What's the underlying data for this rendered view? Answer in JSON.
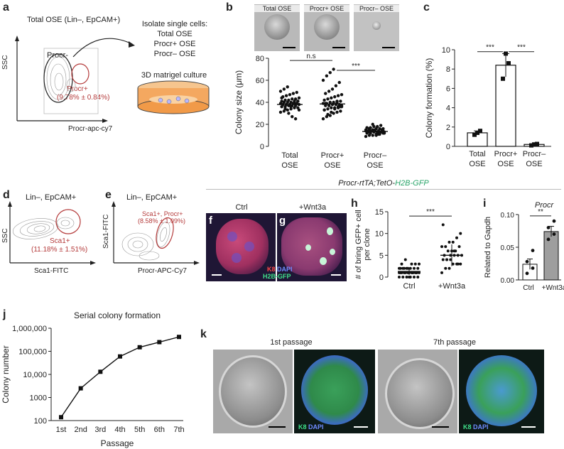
{
  "panel_a": {
    "label": "a",
    "title": "Total OSE (Lin–, EpCAM+)",
    "isolate_title": "Isolate single cells:",
    "isolate_items": [
      "Total OSE",
      "Procr+ OSE",
      "Procr– OSE"
    ],
    "culture": "3D matrigel culture",
    "gate_neg": "Procr-",
    "gate_pos": "Procr+",
    "gate_pos_value": "(9.78% ± 0.84%)",
    "y_axis": "SSC",
    "x_axis": "Procr-apc-cy7"
  },
  "panel_b": {
    "label": "b",
    "images": [
      "Total OSE",
      "Procr+ OSE",
      "Procr– OSE"
    ]
  },
  "panel_c": {
    "label": "c"
  },
  "panel_d": {
    "label": "d",
    "title": "Lin–, EpCAM+",
    "gate": "Sca1+",
    "gate_value": "(11.18% ± 1.51%)",
    "y_axis": "SSC",
    "x_axis": "Sca1-FITC"
  },
  "panel_e": {
    "label": "e",
    "title": "Lin–, EpCAM+",
    "gate": "Sca1+, Procr+",
    "gate_value": "(8.58% ± 1.09%)",
    "y_axis": "Sca1-FITC",
    "x_axis": "Procr-APC-Cy7"
  },
  "panel_fg": {
    "title_a": "Procr-rtTA;TetO-",
    "title_b": "H2B-GFP",
    "f_label": "f",
    "g_label": "g",
    "f_cond": "Ctrl",
    "g_cond": "+Wnt3a",
    "legend_k8": "K8",
    "legend_dapi": "DAPI",
    "legend_h2b": "H2B-GFP",
    "colors": {
      "k8": "#e23a3a",
      "dapi": "#4a6cff",
      "gfp": "#3fe08a"
    }
  },
  "panel_h": {
    "label": "h"
  },
  "panel_i": {
    "label": "i"
  },
  "panel_j": {
    "label": "j"
  },
  "panel_k": {
    "label": "k",
    "first": "1st passage",
    "seventh": "7th passage",
    "legend_k8": "K8",
    "legend_dapi": "DAPI"
  },
  "chart_data": [
    {
      "id": "b",
      "type": "scatter",
      "title": "",
      "ylabel": "Colony size (μm)",
      "ylim": [
        0,
        80
      ],
      "yticks": [
        0,
        20,
        40,
        60,
        80
      ],
      "categories": [
        "Total\nOSE",
        "Procr+\nOSE",
        "Procr–\nOSE"
      ],
      "category_labels": [
        [
          "Total",
          "OSE"
        ],
        [
          "Procr+",
          "OSE"
        ],
        [
          "Procr–",
          "OSE"
        ]
      ],
      "means": [
        38,
        38.5,
        13.5
      ],
      "sem": [
        1.3,
        2,
        0.7
      ],
      "points": [
        [
          31,
          32,
          33,
          34,
          35,
          35,
          36,
          36,
          37,
          37,
          37,
          38,
          38,
          38,
          38,
          39,
          39,
          39,
          40,
          40,
          40,
          41,
          41,
          41,
          42,
          42,
          43,
          43,
          44,
          45,
          46,
          47,
          48,
          49,
          50,
          52,
          54,
          36,
          39,
          41,
          44,
          34,
          30,
          27,
          25,
          33
        ],
        [
          25,
          27,
          28,
          30,
          31,
          32,
          33,
          34,
          35,
          35,
          36,
          36,
          37,
          37,
          38,
          38,
          38,
          39,
          39,
          40,
          40,
          41,
          41,
          42,
          43,
          44,
          45,
          46,
          47,
          48,
          50,
          52,
          55,
          58,
          60,
          64,
          67,
          70,
          40,
          36,
          33,
          29,
          31,
          34,
          35,
          37,
          39
        ],
        [
          9,
          10,
          10,
          11,
          11,
          12,
          12,
          12,
          13,
          13,
          13,
          13,
          14,
          14,
          14,
          14,
          15,
          15,
          15,
          15,
          16,
          16,
          16,
          17,
          17,
          18,
          18,
          19,
          12,
          13,
          14,
          15,
          11,
          13,
          14,
          16,
          20,
          10,
          12,
          14
        ]
      ],
      "annotations": [
        {
          "pair": [
            0,
            1
          ],
          "text": "n.s"
        },
        {
          "pair": [
            1,
            2
          ],
          "text": "***"
        }
      ]
    },
    {
      "id": "c",
      "type": "bar",
      "ylabel": "Colony formation (%)",
      "ylim": [
        0,
        10
      ],
      "yticks": [
        0,
        2,
        4,
        6,
        8,
        10
      ],
      "category_labels": [
        [
          "Total",
          "OSE"
        ],
        [
          "Procr+",
          "OSE"
        ],
        [
          "Procr–",
          "OSE"
        ]
      ],
      "values": [
        1.4,
        8.4,
        0.2
      ],
      "sem": [
        0.2,
        1.2,
        0.05
      ],
      "points": [
        [
          1.2,
          1.4,
          1.6
        ],
        [
          7.0,
          9.6,
          8.6
        ],
        [
          0.1,
          0.2,
          0.25
        ]
      ],
      "annotations": [
        {
          "pair": [
            0,
            1
          ],
          "text": "***"
        },
        {
          "pair": [
            1,
            2
          ],
          "text": "***"
        }
      ]
    },
    {
      "id": "h",
      "type": "scatter",
      "ylabel_lines": [
        "# of bring GFP+ cell",
        "per clone"
      ],
      "ylim": [
        0,
        15
      ],
      "yticks": [
        0,
        5,
        10,
        15
      ],
      "category_labels": [
        "Ctrl",
        "+Wnt3a"
      ],
      "means": [
        1.3,
        5
      ],
      "sem": [
        0.8,
        2.5
      ],
      "points": [
        [
          0,
          0,
          0,
          0,
          0,
          0,
          1,
          1,
          1,
          1,
          1,
          1,
          1,
          1,
          1,
          1,
          1,
          1,
          2,
          2,
          2,
          2,
          2,
          2,
          2,
          2,
          3,
          3,
          3,
          3,
          4,
          0,
          1,
          1,
          2
        ],
        [
          1,
          2,
          2,
          3,
          3,
          3,
          4,
          4,
          4,
          5,
          5,
          5,
          5,
          6,
          6,
          6,
          7,
          7,
          7,
          8,
          8,
          9,
          10,
          12,
          4,
          5,
          6,
          3
        ]
      ],
      "annotations": [
        {
          "pair": [
            0,
            1
          ],
          "text": "***"
        }
      ]
    },
    {
      "id": "i",
      "type": "bar",
      "title": "Procr",
      "ylabel": "Related to Gapdh",
      "ylim": [
        0,
        0.1
      ],
      "yticks": [
        0,
        0.05,
        0.1
      ],
      "ytick_labels": [
        "0.00",
        "0.05",
        "0.10"
      ],
      "category_labels": [
        "Ctrl",
        "+Wnt3a"
      ],
      "values": [
        0.024,
        0.074
      ],
      "sem": [
        0.008,
        0.008
      ],
      "points": [
        [
          0.01,
          0.018,
          0.028,
          0.045
        ],
        [
          0.062,
          0.07,
          0.08,
          0.09
        ]
      ],
      "annotations": [
        {
          "pair": [
            0,
            1
          ],
          "text": "**"
        }
      ]
    },
    {
      "id": "j",
      "type": "line",
      "title": "Serial colony formation",
      "xlabel": "Passage",
      "ylabel": "Colony number",
      "yscale": "log",
      "ylim": [
        100,
        1000000
      ],
      "yticks": [
        100,
        1000,
        10000,
        100000,
        1000000
      ],
      "ytick_labels": [
        "100",
        "1000",
        "10,000",
        "100,000",
        "1,000,000"
      ],
      "categories": [
        "1st",
        "2nd",
        "3rd",
        "4th",
        "5th",
        "6th",
        "7th"
      ],
      "values": [
        140,
        2500,
        13000,
        60000,
        150000,
        250000,
        420000
      ]
    }
  ]
}
